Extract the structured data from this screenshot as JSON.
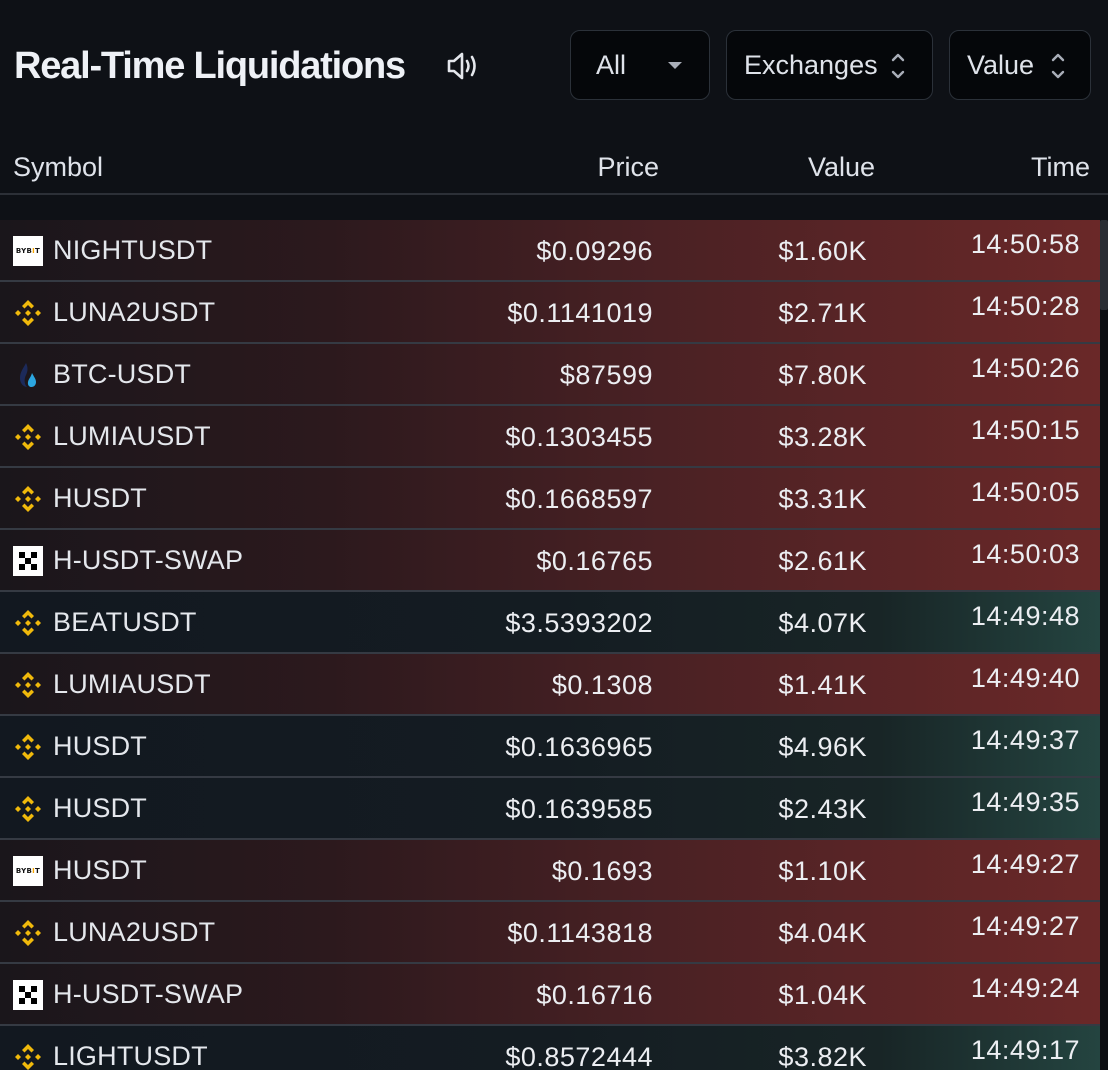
{
  "header": {
    "title": "Real-Time Liquidations",
    "sound_icon": "speaker-volume-icon",
    "filters": {
      "side": {
        "selected": "All",
        "icon": "caret-down-icon"
      },
      "exchanges": {
        "label": "Exchanges",
        "icon": "chevron-up-down-icon"
      },
      "sort": {
        "label": "Value",
        "icon": "chevron-up-down-icon"
      }
    }
  },
  "table": {
    "columns": [
      "Symbol",
      "Price",
      "Value",
      "Time"
    ],
    "colors": {
      "sell": "#6a2828",
      "buy": "#244440",
      "binance": "#f0b90b",
      "huobi": "#2ca6e0"
    },
    "rows": [
      {
        "exchange": "bybit",
        "symbol": "NIGHTUSDT",
        "price": "$0.09296",
        "value": "$1.60K",
        "time": "14:50:58",
        "side": "sell"
      },
      {
        "exchange": "binance",
        "symbol": "LUNA2USDT",
        "price": "$0.1141019",
        "value": "$2.71K",
        "time": "14:50:28",
        "side": "sell"
      },
      {
        "exchange": "huobi",
        "symbol": "BTC-USDT",
        "price": "$87599",
        "value": "$7.80K",
        "time": "14:50:26",
        "side": "sell"
      },
      {
        "exchange": "binance",
        "symbol": "LUMIAUSDT",
        "price": "$0.1303455",
        "value": "$3.28K",
        "time": "14:50:15",
        "side": "sell"
      },
      {
        "exchange": "binance",
        "symbol": "HUSDT",
        "price": "$0.1668597",
        "value": "$3.31K",
        "time": "14:50:05",
        "side": "sell"
      },
      {
        "exchange": "okx",
        "symbol": "H-USDT-SWAP",
        "price": "$0.16765",
        "value": "$2.61K",
        "time": "14:50:03",
        "side": "sell"
      },
      {
        "exchange": "binance",
        "symbol": "BEATUSDT",
        "price": "$3.5393202",
        "value": "$4.07K",
        "time": "14:49:48",
        "side": "buy"
      },
      {
        "exchange": "binance",
        "symbol": "LUMIAUSDT",
        "price": "$0.1308",
        "value": "$1.41K",
        "time": "14:49:40",
        "side": "sell"
      },
      {
        "exchange": "binance",
        "symbol": "HUSDT",
        "price": "$0.1636965",
        "value": "$4.96K",
        "time": "14:49:37",
        "side": "buy"
      },
      {
        "exchange": "binance",
        "symbol": "HUSDT",
        "price": "$0.1639585",
        "value": "$2.43K",
        "time": "14:49:35",
        "side": "buy"
      },
      {
        "exchange": "bybit",
        "symbol": "HUSDT",
        "price": "$0.1693",
        "value": "$1.10K",
        "time": "14:49:27",
        "side": "sell"
      },
      {
        "exchange": "binance",
        "symbol": "LUNA2USDT",
        "price": "$0.1143818",
        "value": "$4.04K",
        "time": "14:49:27",
        "side": "sell"
      },
      {
        "exchange": "okx",
        "symbol": "H-USDT-SWAP",
        "price": "$0.16716",
        "value": "$1.04K",
        "time": "14:49:24",
        "side": "sell"
      },
      {
        "exchange": "binance",
        "symbol": "LIGHTUSDT",
        "price": "$0.8572444",
        "value": "$3.82K",
        "time": "14:49:17",
        "side": "buy"
      }
    ]
  },
  "logos": {
    "bybit_text_a": "BYB",
    "bybit_text_b": "I",
    "bybit_text_c": "T"
  }
}
